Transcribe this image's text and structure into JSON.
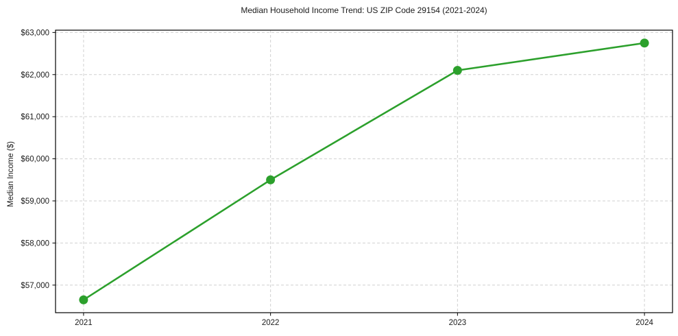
{
  "chart": {
    "title": "Median Household Income Trend: US ZIP Code 29154 (2021-2024)",
    "ylabel": "Median Income ($)"
  },
  "chart_data": {
    "type": "line",
    "title": "Median Household Income Trend: US ZIP Code 29154 (2021-2024)",
    "series_name": "Median Household Income",
    "x": [
      2021,
      2022,
      2023,
      2024
    ],
    "values": [
      56650,
      59500,
      62100,
      62750
    ],
    "xlabel": "",
    "ylabel": "Median Income ($)",
    "xlim": [
      2020.85,
      2024.15
    ],
    "ylim": [
      56345,
      63055
    ],
    "xticks": {
      "values": [
        2021,
        2022,
        2023,
        2024
      ],
      "labels": [
        "2021",
        "2022",
        "2023",
        "2024"
      ]
    },
    "yticks": {
      "values": [
        57000,
        58000,
        59000,
        60000,
        61000,
        62000,
        63000
      ],
      "labels": [
        "$57,000",
        "$58,000",
        "$59,000",
        "$60,000",
        "$61,000",
        "$62,000",
        "$63,000"
      ]
    },
    "grid": true,
    "grid_style": "dashed",
    "legend": false,
    "marker": "circle",
    "colors": {
      "line": "#2ca02c",
      "marker": "#2ca02c",
      "grid": "#d0d0d0",
      "spine": "#000000",
      "text": "#1a1a1a",
      "background": "#ffffff"
    }
  }
}
